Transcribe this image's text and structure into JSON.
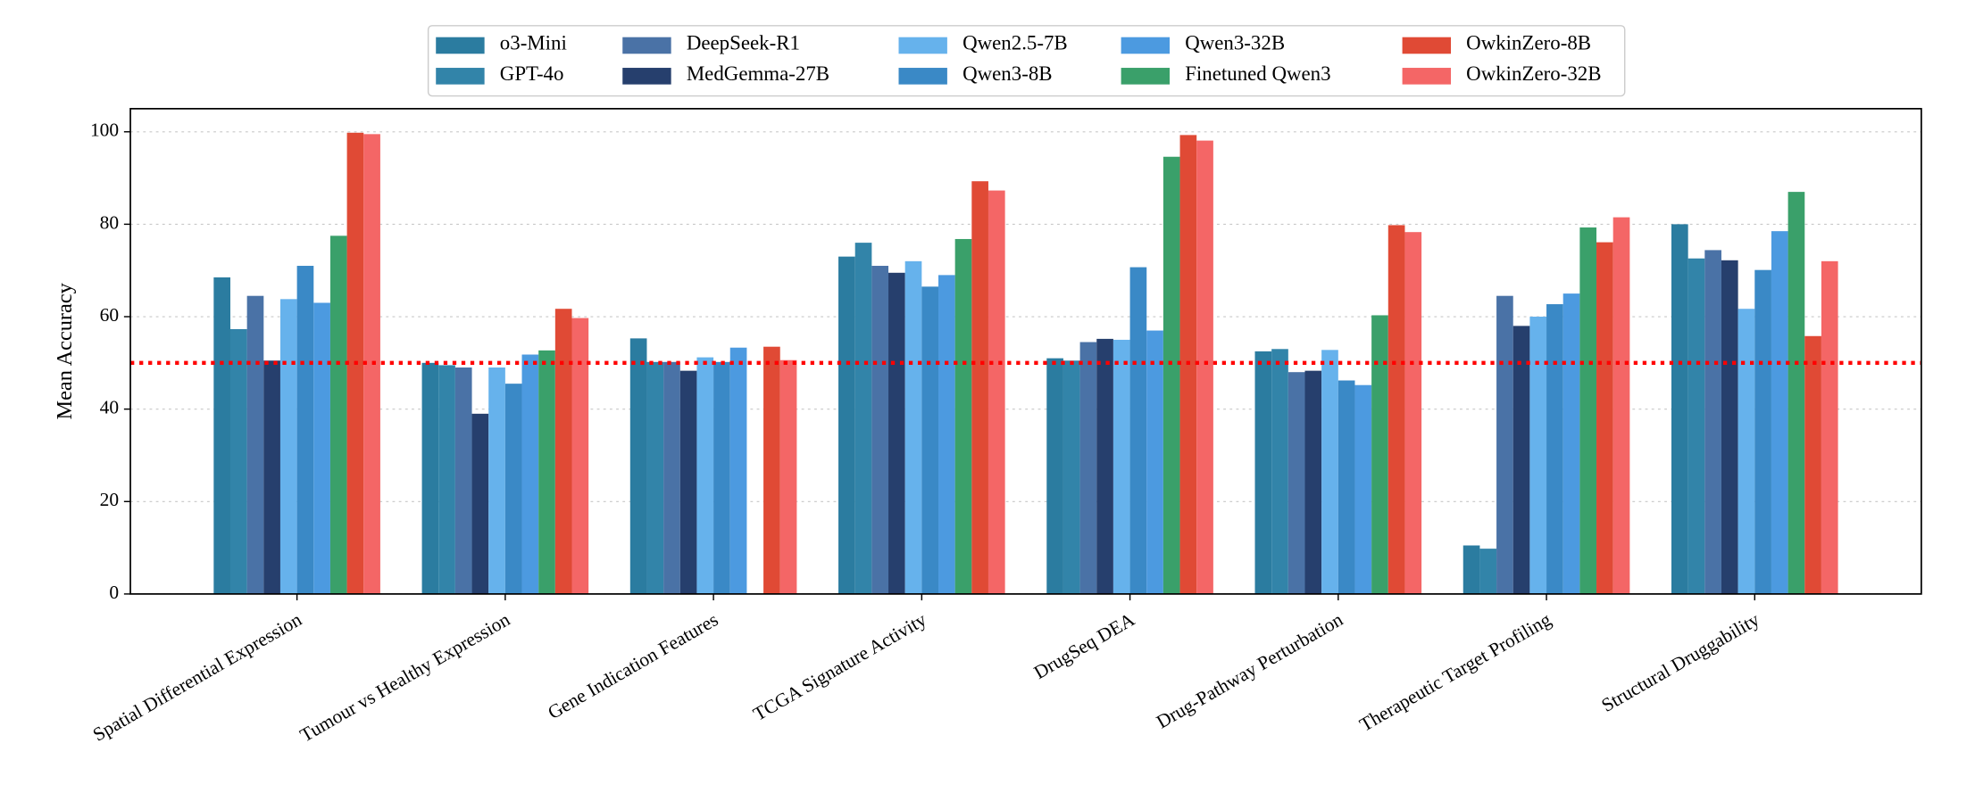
{
  "chart_data": {
    "type": "bar",
    "ylabel": "Mean Accuracy",
    "categories": [
      "Spatial Differential Expression",
      "Tumour vs Healthy Expression",
      "Gene Indication Features",
      "TCGA Signature Activity",
      "DrugSeq DEA",
      "Drug-Pathway Perturbation",
      "Therapeutic Target Profiling",
      "Structural Druggability"
    ],
    "series": [
      {
        "name": "o3-Mini",
        "color": "#2b7ca0",
        "values": [
          68.5,
          50,
          55.3,
          73,
          51,
          52.5,
          10.5,
          80
        ]
      },
      {
        "name": "GPT-4o",
        "color": "#3284a9",
        "values": [
          57.3,
          49.5,
          50.2,
          76,
          50.5,
          53,
          9.8,
          72.6
        ]
      },
      {
        "name": "DeepSeek-R1",
        "color": "#4a72a6",
        "values": [
          64.5,
          49,
          50.2,
          71,
          54.5,
          48,
          64.5,
          74.4
        ]
      },
      {
        "name": "MedGemma-27B",
        "color": "#263f6d",
        "values": [
          50.5,
          39,
          48.3,
          69.5,
          55.2,
          48.3,
          58,
          72.2
        ]
      },
      {
        "name": "Qwen2.5-7B",
        "color": "#66b2ec",
        "values": [
          63.8,
          49,
          51.2,
          72,
          55,
          52.8,
          60,
          61.7
        ]
      },
      {
        "name": "Qwen3-8B",
        "color": "#3a89c6",
        "values": [
          71,
          45.5,
          50.2,
          66.5,
          70.7,
          46.2,
          62.7,
          70.1
        ]
      },
      {
        "name": "Qwen3-32B",
        "color": "#4c9ae0",
        "values": [
          63,
          51.8,
          53.3,
          69,
          57,
          45.2,
          65,
          78.5
        ]
      },
      {
        "name": "Finetuned Qwen3",
        "color": "#3aa06a",
        "values": [
          77.5,
          52.7,
          null,
          76.8,
          94.6,
          60.3,
          79.3,
          87
        ]
      },
      {
        "name": "OwkinZero-8B",
        "color": "#e04a35",
        "values": [
          99.8,
          61.7,
          53.5,
          89.3,
          99.3,
          79.8,
          76.1,
          55.8
        ]
      },
      {
        "name": "OwkinZero-32B",
        "color": "#f46666",
        "values": [
          99.5,
          59.7,
          50.6,
          87.3,
          98.1,
          78.3,
          81.5,
          72
        ]
      }
    ],
    "ylim": [
      0,
      105
    ],
    "yticks": [
      0,
      20,
      40,
      60,
      80,
      100
    ],
    "grid": true,
    "legend": "upper center",
    "hline": {
      "value": 50,
      "color": "#ff0000"
    }
  }
}
